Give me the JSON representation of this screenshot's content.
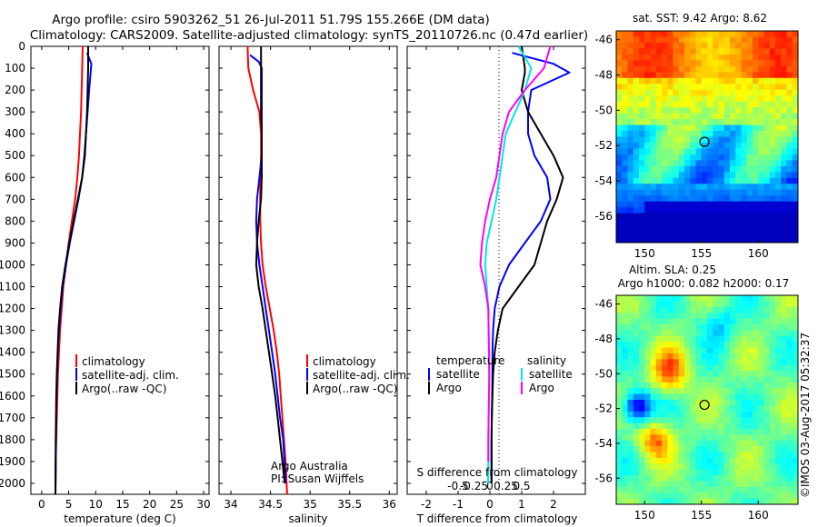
{
  "header": {
    "line1": "Argo profile: csiro 5903262_51 26-Jul-2011 51.79S 155.266E (DM data)",
    "line2": "Climatology: CARS2009. Satellite-adjusted climatology: synTS_20110726.nc (0.47d earlier)"
  },
  "colors": {
    "climatology": "#ff0000",
    "satellite": "#0000ff",
    "argo": "#000000",
    "sal_satellite": "#00e5ee",
    "sal_argo": "#ff00ff"
  },
  "depth_axis": {
    "ticks": [
      0,
      100,
      200,
      300,
      400,
      500,
      600,
      700,
      800,
      900,
      1000,
      1100,
      1200,
      1300,
      1400,
      1500,
      1600,
      1700,
      1800,
      1900,
      2000
    ],
    "range": [
      0,
      2050
    ]
  },
  "temperature_panel": {
    "xlabel": "temperature (deg C)",
    "xticks": [
      0,
      5,
      10,
      15,
      20,
      25,
      30
    ],
    "xlim": [
      -2,
      31
    ],
    "legend": [
      "climatology",
      "satellite-adj. clim.",
      "Argo(..raw -QC)"
    ]
  },
  "salinity_panel": {
    "xlabel": "salinity",
    "xticks": [
      "34",
      "34.5",
      "35",
      "35.5",
      "36"
    ],
    "xlim": [
      33.85,
      36.1
    ],
    "legend": [
      "climatology",
      "satellite-adj. clim.",
      "Argo(..raw -QC)"
    ],
    "note1": "Argo Australia",
    "note2": "PI: Susan Wijffels"
  },
  "difference_panel": {
    "xlabel": "T difference from climatology",
    "xticks": [
      "-2",
      "-1",
      "0",
      "1",
      "2"
    ],
    "xlim": [
      -2.6,
      3.0
    ],
    "toplabel": "S difference from climatology",
    "topticks": [
      "-0.5",
      "-0.25",
      "0",
      "0.25",
      "0.5"
    ],
    "legend_temp_title": "temperature",
    "legend_sal_title": "salinity",
    "legend_temp": [
      "satellite",
      "Argo"
    ],
    "legend_sal": [
      "satellite",
      "Argo"
    ]
  },
  "map_sst": {
    "title": "sat. SST: 9.42  Argo: 8.62",
    "yticks": [
      "-46",
      "-48",
      "-50",
      "-52",
      "-54",
      "-56"
    ],
    "xticks": [
      "150",
      "155",
      "160"
    ],
    "lon": [
      147.5,
      163.5
    ],
    "lat": [
      -57.5,
      -45.5
    ],
    "float": {
      "lon": 155.27,
      "lat": -51.79
    }
  },
  "map_sla": {
    "title1": "Altim. SLA: 0.25",
    "title2": "Argo h1000: 0.082 h2000: 0.17",
    "yticks": [
      "-46",
      "-48",
      "-50",
      "-52",
      "-54",
      "-56"
    ],
    "xticks": [
      "150",
      "155",
      "160"
    ],
    "lon": [
      147.5,
      163.5
    ],
    "lat": [
      -57.5,
      -45.5
    ],
    "float": {
      "lon": 155.27,
      "lat": -51.79
    }
  },
  "credit": "©IMOS 03-Aug-2017 05:32:37",
  "chart_data": [
    {
      "type": "line",
      "title": "",
      "xlabel": "temperature (deg C)",
      "ylabel": "",
      "xlim": [
        -2,
        31
      ],
      "ylim": [
        2050,
        0
      ],
      "series": [
        {
          "name": "climatology",
          "x": [
            7.6,
            7.5,
            7.4,
            7.3,
            7.1,
            6.9,
            6.6,
            6.2,
            5.6,
            5.0,
            4.5,
            4.0,
            3.7,
            3.4,
            3.2,
            3.0,
            2.9,
            2.8,
            2.7,
            2.6,
            2.55
          ],
          "y": [
            0,
            100,
            200,
            300,
            400,
            500,
            600,
            700,
            800,
            900,
            1000,
            1100,
            1200,
            1300,
            1400,
            1500,
            1600,
            1700,
            1800,
            1900,
            2050
          ]
        },
        {
          "name": "satellite-adj. clim.",
          "x": [
            8.4,
            9.2,
            8.8,
            8.5,
            8.2,
            7.9,
            7.5,
            6.8,
            6.0,
            5.2,
            4.5,
            3.9,
            3.5,
            3.2,
            3.0,
            2.85,
            2.75,
            2.7,
            2.65,
            2.6,
            2.55
          ],
          "y": [
            30,
            80,
            200,
            300,
            400,
            500,
            600,
            700,
            800,
            900,
            1000,
            1100,
            1200,
            1300,
            1400,
            1500,
            1600,
            1700,
            1800,
            1900,
            2050
          ]
        },
        {
          "name": "Argo(..raw -QC)",
          "x": [
            8.6,
            8.6,
            8.5,
            8.4,
            8.2,
            8.0,
            7.5,
            6.7,
            5.9,
            5.1,
            4.4,
            3.8,
            3.4,
            3.1,
            2.95,
            2.8,
            2.7,
            2.65,
            2.6,
            2.58,
            2.55
          ],
          "y": [
            0,
            100,
            200,
            300,
            400,
            500,
            600,
            700,
            800,
            900,
            1000,
            1100,
            1200,
            1300,
            1400,
            1500,
            1600,
            1700,
            1800,
            1900,
            2050
          ]
        }
      ]
    },
    {
      "type": "line",
      "title": "",
      "xlabel": "salinity",
      "ylabel": "",
      "xlim": [
        33.85,
        36.1
      ],
      "ylim": [
        2050,
        0
      ],
      "series": [
        {
          "name": "climatology",
          "x": [
            34.21,
            34.22,
            34.28,
            34.36,
            34.38,
            34.38,
            34.37,
            34.37,
            34.37,
            34.38,
            34.4,
            34.44,
            34.49,
            34.54,
            34.58,
            34.61,
            34.63,
            34.65,
            34.67,
            34.69,
            34.71
          ],
          "y": [
            0,
            100,
            200,
            300,
            400,
            500,
            600,
            700,
            800,
            900,
            1000,
            1100,
            1200,
            1300,
            1400,
            1500,
            1600,
            1700,
            1800,
            1900,
            2050
          ]
        },
        {
          "name": "satellite-adj. clim.",
          "x": [
            34.24,
            34.35,
            34.39,
            34.39,
            34.39,
            34.39,
            34.39,
            34.36,
            34.33,
            34.32,
            34.33,
            34.36,
            34.4,
            34.44,
            34.48,
            34.52,
            34.56,
            34.59,
            34.62,
            34.66,
            34.69
          ],
          "y": [
            40,
            70,
            100,
            200,
            300,
            400,
            500,
            600,
            700,
            800,
            900,
            1000,
            1100,
            1200,
            1300,
            1400,
            1500,
            1600,
            1700,
            1800,
            2000
          ]
        },
        {
          "name": "Argo(..raw -QC)",
          "x": [
            34.38,
            34.38,
            34.38,
            34.38,
            34.39,
            34.39,
            34.39,
            34.38,
            34.35,
            34.33,
            34.32,
            34.35,
            34.4,
            34.44,
            34.48,
            34.52,
            34.56,
            34.59,
            34.62,
            34.65,
            34.68
          ],
          "y": [
            0,
            100,
            200,
            300,
            400,
            500,
            600,
            700,
            800,
            900,
            1000,
            1100,
            1200,
            1300,
            1400,
            1500,
            1600,
            1700,
            1800,
            1900,
            2000
          ]
        }
      ]
    },
    {
      "type": "line",
      "title": "",
      "xlabel": "T difference from climatology",
      "ylabel": "",
      "xlim": [
        -2.6,
        3.0
      ],
      "ylim": [
        2050,
        0
      ],
      "series": [
        {
          "name": "satellite",
          "x": [
            0.7,
            2.0,
            2.5,
            1.3,
            1.2,
            1.2,
            1.4,
            1.8,
            1.9,
            1.6,
            1.1,
            0.6,
            0.3,
            0.15,
            0.1,
            0.08,
            0.08,
            0.07,
            0.06,
            0.05,
            0.05
          ],
          "y": [
            30,
            80,
            120,
            200,
            300,
            400,
            500,
            600,
            700,
            800,
            900,
            1000,
            1100,
            1200,
            1300,
            1400,
            1500,
            1600,
            1700,
            1800,
            2000
          ]
        },
        {
          "name": "Argo",
          "x": [
            1.0,
            1.1,
            1.1,
            1.0,
            1.2,
            1.6,
            2.0,
            2.3,
            2.1,
            1.8,
            1.6,
            1.4,
            0.9,
            0.4,
            0.25,
            0.15,
            0.1,
            0.08,
            0.06,
            0.05,
            0.05
          ],
          "y": [
            0,
            100,
            120,
            200,
            300,
            400,
            500,
            600,
            700,
            800,
            900,
            1000,
            1100,
            1200,
            1300,
            1400,
            1500,
            1600,
            1700,
            1800,
            2000
          ]
        },
        {
          "name": "satellite (salinity)",
          "x": [
            0.9,
            1.3,
            1.1,
            0.8,
            0.5,
            0.4,
            0.3,
            0.2,
            0.05,
            -0.1,
            -0.15,
            -0.1,
            -0.05,
            -0.04,
            -0.03,
            -0.02,
            -0.03,
            -0.04,
            -0.05,
            -0.05,
            -0.06
          ],
          "y": [
            0,
            100,
            200,
            300,
            400,
            500,
            600,
            700,
            800,
            900,
            1000,
            1100,
            1200,
            1300,
            1400,
            1500,
            1600,
            1700,
            1800,
            1900,
            2000
          ]
        },
        {
          "name": "Argo (salinity)",
          "x": [
            1.9,
            1.7,
            1.1,
            0.6,
            0.4,
            0.3,
            0.2,
            0.0,
            -0.15,
            -0.25,
            -0.3,
            -0.15,
            -0.05,
            -0.04,
            -0.03,
            -0.02,
            -0.03,
            -0.04,
            -0.05,
            -0.05
          ],
          "y": [
            0,
            100,
            200,
            300,
            400,
            500,
            600,
            700,
            800,
            900,
            1000,
            1100,
            1200,
            1300,
            1400,
            1500,
            1600,
            1700,
            1800,
            1900
          ]
        }
      ]
    }
  ]
}
